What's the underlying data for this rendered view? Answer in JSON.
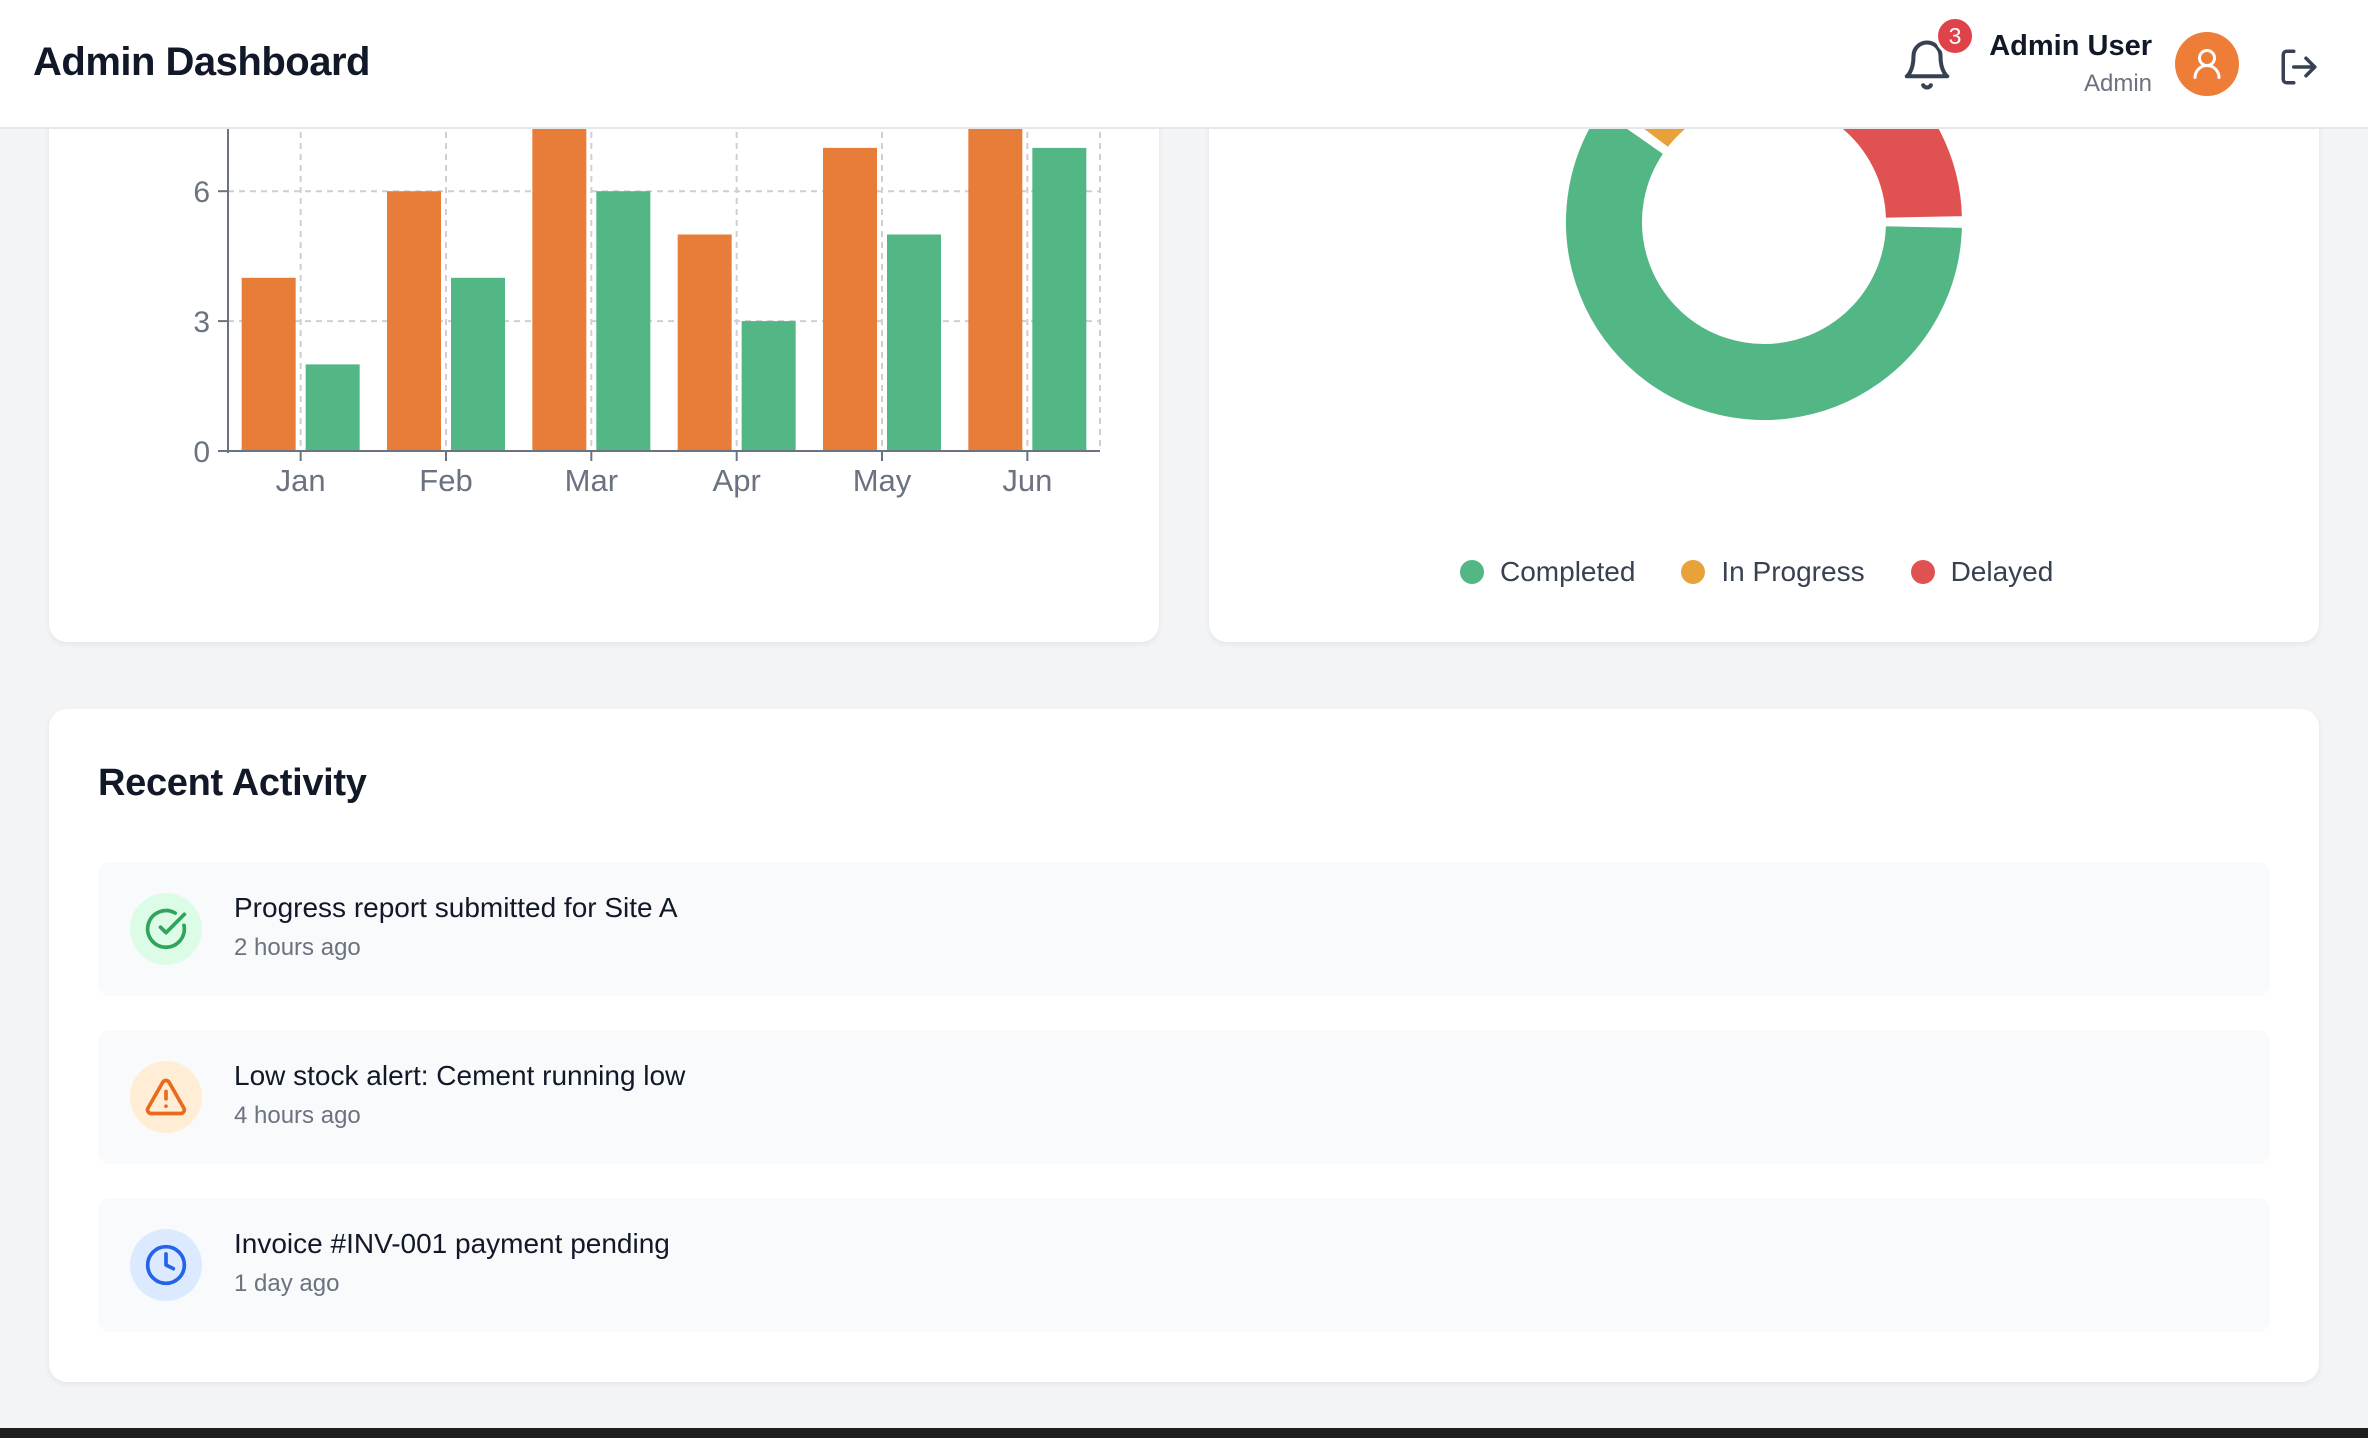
{
  "header": {
    "title": "Admin Dashboard",
    "notifications_count": "3",
    "user_name": "Admin User",
    "user_role": "Admin",
    "icons": {
      "notifications": "bell-icon",
      "avatar": "user-icon",
      "logout": "logout-icon"
    }
  },
  "colors": {
    "orange": "#e87d3a",
    "green": "#52b685",
    "amber": "#e9a23b",
    "red": "#e05252",
    "badge": "#e0424a",
    "avatar": "#ee7d37"
  },
  "chart_data": [
    {
      "type": "bar",
      "categories": [
        "Jan",
        "Feb",
        "Mar",
        "Apr",
        "May",
        "Jun"
      ],
      "series": [
        {
          "values": [
            4,
            6,
            8,
            5,
            7,
            8
          ]
        },
        {
          "values": [
            2,
            4,
            6,
            3,
            5,
            7
          ]
        }
      ],
      "yticks": [
        "0",
        "3",
        "6"
      ],
      "ylim": [
        0,
        8
      ],
      "grid": true,
      "colors": [
        "#e87d3a",
        "#52b685"
      ]
    },
    {
      "type": "pie",
      "donut": true,
      "labels": [
        "Completed",
        "In Progress",
        "Delayed"
      ],
      "values": [
        60,
        25,
        15
      ],
      "colors": [
        "#52b685",
        "#e9a23b",
        "#e05252"
      ],
      "legend_position": "bottom"
    }
  ],
  "activity": {
    "title": "Recent Activity",
    "items": [
      {
        "text": "Progress report submitted for Site A",
        "time": "2 hours ago",
        "icon": "check-circle-icon",
        "color": "#2fa45a",
        "bg": "#dcfce7"
      },
      {
        "text": "Low stock alert: Cement running low",
        "time": "4 hours ago",
        "icon": "warning-icon",
        "color": "#ea6a1d",
        "bg": "#ffedd5"
      },
      {
        "text": "Invoice #INV-001 payment pending",
        "time": "1 day ago",
        "icon": "clock-icon",
        "color": "#2563eb",
        "bg": "#dbeafe"
      }
    ]
  }
}
